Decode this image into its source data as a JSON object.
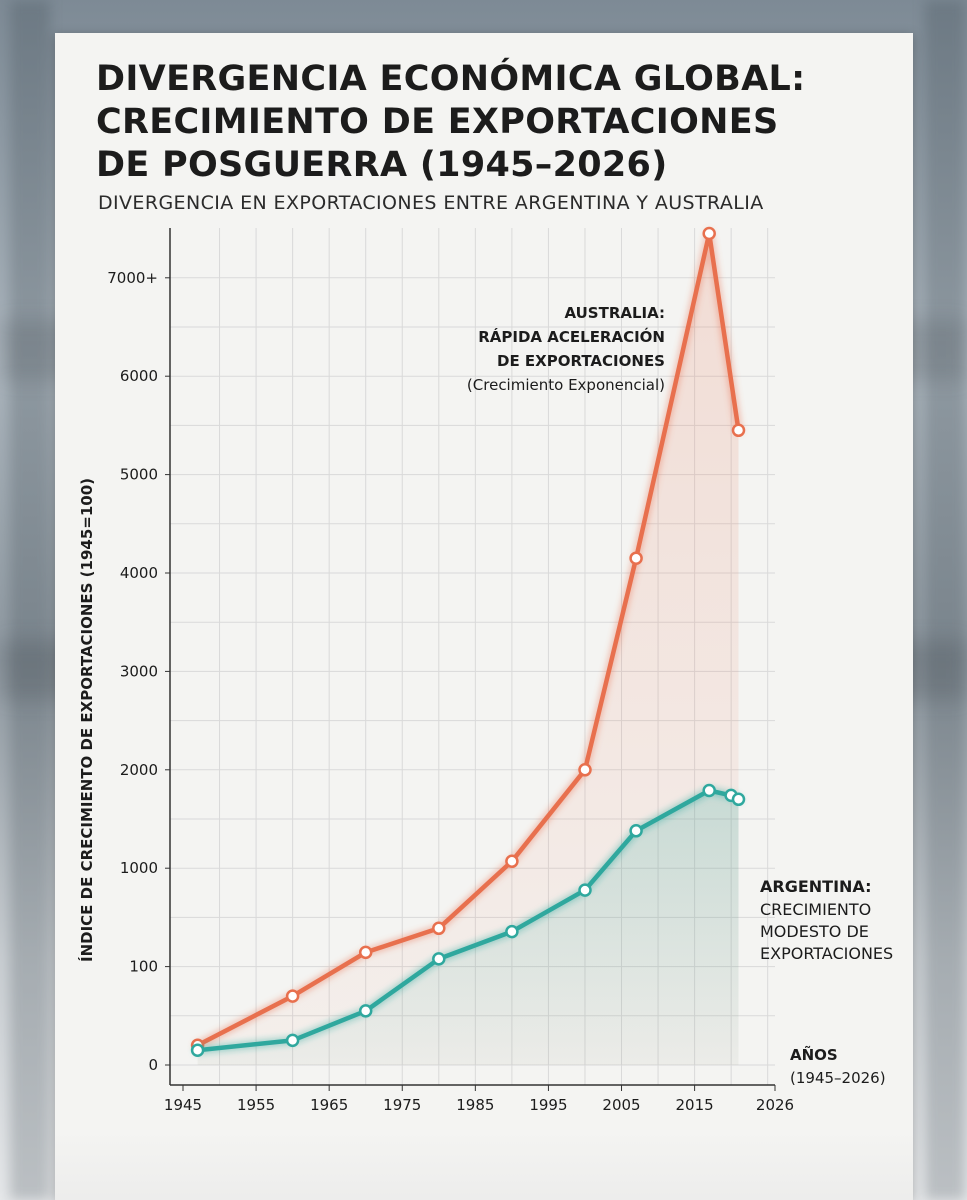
{
  "title_lines": [
    "DIVERGENCIA ECONÓMICA GLOBAL:",
    "CRECIMIENTO DE EXPORTACIONES",
    "DE POSGUERRA (1945–2026)"
  ],
  "subtitle": "DIVERGENCIA EN EXPORTACIONES ENTRE ARGENTINA Y AUSTRALIA",
  "annotations": {
    "australia": {
      "line1": "AUSTRALIA:",
      "line2": "RÁPIDA ACELERACIÓN",
      "line3": "DE EXPORTACIONES",
      "note": "(Crecimiento Exponencial)"
    },
    "argentina": {
      "line1": "ARGENTINA:",
      "line2": "CRECIMIENTO",
      "line3": "MODESTO DE",
      "line4": "EXPORTACIONES"
    },
    "x_axis": {
      "label": "AÑOS",
      "range": "(1945–2026)"
    }
  },
  "colors": {
    "australia": "#e8704e",
    "argentina": "#2fa89e",
    "grid": "#d9d9d9",
    "axis": "#333333"
  },
  "chart_data": {
    "type": "line",
    "title": "DIVERGENCIA ECONÓMICA GLOBAL: CRECIMIENTO DE EXPORTACIONES DE POSGUERRA (1945–2026)",
    "subtitle": "DIVERGENCIA EN EXPORTACIONES ENTRE ARGENTINA Y AUSTRALIA",
    "xlabel": "AÑOS (1945–2026)",
    "ylabel": "ÍNDICE DE CRECIMIENTO DE EXPORTACIONES (1945=100)",
    "y_scale": "piecewise (0, 100, 1000, 2000 … 7000+ equally spaced)",
    "xlim": [
      1945,
      2026
    ],
    "x_ticks": [
      1945,
      1955,
      1965,
      1975,
      1985,
      1995,
      2005,
      2015,
      2026
    ],
    "y_ticks": [
      0,
      100,
      1000,
      2000,
      3000,
      4000,
      5000,
      6000,
      7000
    ],
    "y_tick_labels": [
      "0",
      "100",
      "1000",
      "2000",
      "3000",
      "4000",
      "5000",
      "6000",
      "7000+"
    ],
    "grid": true,
    "series": [
      {
        "name": "AUSTRALIA",
        "x": [
          1947,
          1960,
          1970,
          1980,
          1990,
          2000,
          2007,
          2017,
          2021
        ],
        "y": [
          20,
          70,
          230,
          450,
          1070,
          2000,
          4150,
          7450,
          5450
        ]
      },
      {
        "name": "ARGENTINA",
        "x": [
          1947,
          1960,
          1970,
          1980,
          1990,
          2000,
          2007,
          2017,
          2020,
          2021
        ],
        "y": [
          15,
          25,
          55,
          170,
          420,
          800,
          1380,
          1790,
          1740,
          1700
        ]
      }
    ]
  }
}
